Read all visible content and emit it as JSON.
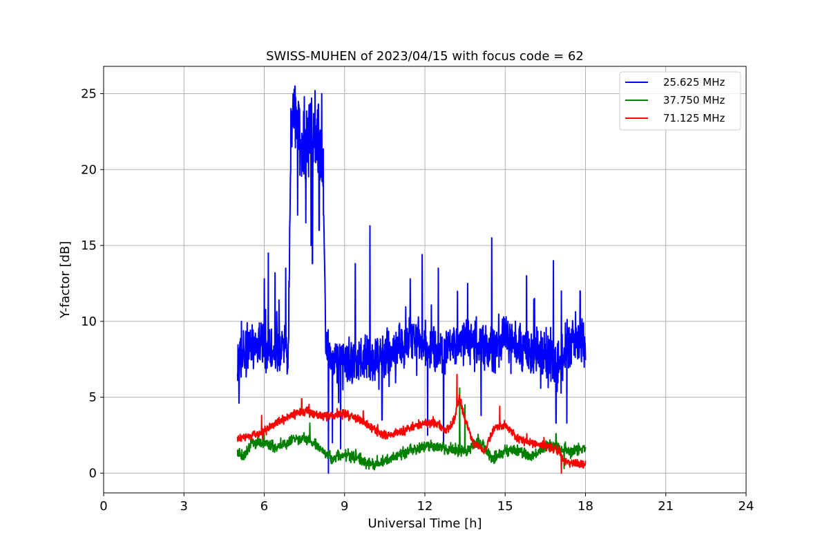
{
  "chart_data": {
    "type": "line",
    "title": "SWISS-MUHEN of 2023/04/15 with focus code = 62",
    "xlabel": "Universal Time [h]",
    "ylabel": "Y-factor [dB]",
    "xlim": [
      0,
      24
    ],
    "ylim": [
      -1.3,
      26.8
    ],
    "xticks": [
      0,
      3,
      6,
      9,
      12,
      15,
      18,
      21,
      24
    ],
    "xtick_labels": [
      "0",
      "3",
      "6",
      "9",
      "12",
      "15",
      "18",
      "21",
      "24"
    ],
    "yticks": [
      0,
      5,
      10,
      15,
      20,
      25
    ],
    "ytick_labels": [
      "0",
      "5",
      "10",
      "15",
      "20",
      "25"
    ],
    "grid": true,
    "legend_position": "top-right",
    "series": [
      {
        "name": "25.625 MHz",
        "color": "#0000ff",
        "anchors": [
          [
            5.0,
            8.0
          ],
          [
            5.2,
            7.5
          ],
          [
            5.5,
            8.2
          ],
          [
            6.0,
            8.0
          ],
          [
            6.5,
            8.2
          ],
          [
            6.9,
            8.0
          ],
          [
            7.0,
            22.5
          ],
          [
            7.2,
            23.5
          ],
          [
            7.5,
            21.0
          ],
          [
            7.8,
            22.5
          ],
          [
            8.0,
            21.5
          ],
          [
            8.2,
            20.0
          ],
          [
            8.3,
            8.5
          ],
          [
            8.6,
            7.0
          ],
          [
            9.0,
            7.5
          ],
          [
            9.5,
            7.5
          ],
          [
            10.0,
            7.5
          ],
          [
            10.5,
            7.8
          ],
          [
            11.0,
            8.2
          ],
          [
            11.5,
            8.8
          ],
          [
            12.0,
            8.5
          ],
          [
            12.5,
            8.0
          ],
          [
            13.0,
            8.5
          ],
          [
            13.5,
            8.8
          ],
          [
            14.0,
            8.5
          ],
          [
            14.5,
            8.3
          ],
          [
            15.0,
            8.8
          ],
          [
            15.5,
            8.5
          ],
          [
            16.0,
            8.0
          ],
          [
            16.5,
            7.5
          ],
          [
            17.0,
            7.0
          ],
          [
            17.4,
            8.5
          ],
          [
            17.7,
            9.0
          ],
          [
            18.0,
            8.5
          ]
        ],
        "noise": 1.6,
        "spikes": [
          [
            5.15,
            10.0
          ],
          [
            6.0,
            12.8
          ],
          [
            6.15,
            14.5
          ],
          [
            6.4,
            13.2
          ],
          [
            6.55,
            11.4
          ],
          [
            6.8,
            13.5
          ],
          [
            7.08,
            25.0
          ],
          [
            7.15,
            25.5
          ],
          [
            7.5,
            24.8
          ],
          [
            7.9,
            25.2
          ],
          [
            8.15,
            25.0
          ],
          [
            7.25,
            17.0
          ],
          [
            7.55,
            16.5
          ],
          [
            7.75,
            15.0
          ],
          [
            7.8,
            13.8
          ],
          [
            8.05,
            16.0
          ],
          [
            8.4,
            0.0
          ],
          [
            8.55,
            2.0
          ],
          [
            8.85,
            1.6
          ],
          [
            9.4,
            13.8
          ],
          [
            9.95,
            16.3
          ],
          [
            10.4,
            3.5
          ],
          [
            11.45,
            12.8
          ],
          [
            11.9,
            14.4
          ],
          [
            12.1,
            2.5
          ],
          [
            12.5,
            13.5
          ],
          [
            12.7,
            1.8
          ],
          [
            13.6,
            12.5
          ],
          [
            14.5,
            15.5
          ],
          [
            14.1,
            3.8
          ],
          [
            15.8,
            13.0
          ],
          [
            16.1,
            11.5
          ],
          [
            16.8,
            14.0
          ],
          [
            16.9,
            3.3
          ],
          [
            17.1,
            12.0
          ],
          [
            17.3,
            3.3
          ],
          [
            17.8,
            12.0
          ]
        ]
      },
      {
        "name": "37.750 MHz",
        "color": "#008000",
        "anchors": [
          [
            5.0,
            1.3
          ],
          [
            5.2,
            1.0
          ],
          [
            5.5,
            2.0
          ],
          [
            6.0,
            2.0
          ],
          [
            6.5,
            1.7
          ],
          [
            7.0,
            2.2
          ],
          [
            7.5,
            2.3
          ],
          [
            8.0,
            1.8
          ],
          [
            8.5,
            1.0
          ],
          [
            9.0,
            1.2
          ],
          [
            9.5,
            1.0
          ],
          [
            10.0,
            0.5
          ],
          [
            10.5,
            0.8
          ],
          [
            11.0,
            1.2
          ],
          [
            11.5,
            1.5
          ],
          [
            12.0,
            1.8
          ],
          [
            12.5,
            1.7
          ],
          [
            13.0,
            1.5
          ],
          [
            13.5,
            1.4
          ],
          [
            14.0,
            2.2
          ],
          [
            14.5,
            0.9
          ],
          [
            15.0,
            1.5
          ],
          [
            15.5,
            1.5
          ],
          [
            16.0,
            1.0
          ],
          [
            16.5,
            1.8
          ],
          [
            17.0,
            1.7
          ],
          [
            17.5,
            1.4
          ],
          [
            18.0,
            1.7
          ]
        ],
        "noise": 0.35,
        "spikes": [
          [
            13.3,
            5.6
          ],
          [
            13.5,
            4.5
          ],
          [
            16.9,
            2.6
          ],
          [
            7.7,
            3.3
          ],
          [
            17.2,
            0.3
          ]
        ]
      },
      {
        "name": "71.125 MHz",
        "color": "#ff0000",
        "anchors": [
          [
            5.0,
            2.3
          ],
          [
            5.5,
            2.4
          ],
          [
            6.0,
            2.8
          ],
          [
            6.5,
            3.3
          ],
          [
            7.0,
            3.8
          ],
          [
            7.5,
            4.1
          ],
          [
            8.0,
            3.8
          ],
          [
            8.5,
            3.8
          ],
          [
            9.0,
            3.9
          ],
          [
            9.5,
            3.6
          ],
          [
            10.0,
            3.0
          ],
          [
            10.5,
            2.5
          ],
          [
            11.0,
            2.7
          ],
          [
            11.5,
            3.0
          ],
          [
            12.0,
            3.3
          ],
          [
            12.5,
            3.2
          ],
          [
            12.8,
            2.8
          ],
          [
            13.1,
            3.5
          ],
          [
            13.3,
            5.0
          ],
          [
            13.5,
            3.5
          ],
          [
            13.8,
            2.0
          ],
          [
            14.2,
            1.4
          ],
          [
            14.6,
            3.0
          ],
          [
            15.0,
            3.2
          ],
          [
            15.5,
            2.2
          ],
          [
            16.0,
            2.0
          ],
          [
            16.5,
            1.8
          ],
          [
            17.0,
            1.5
          ],
          [
            17.2,
            0.8
          ],
          [
            17.5,
            0.7
          ],
          [
            18.0,
            0.5
          ]
        ],
        "noise": 0.28,
        "spikes": [
          [
            5.9,
            3.8
          ],
          [
            7.4,
            4.9
          ],
          [
            9.7,
            4.1
          ],
          [
            13.2,
            6.5
          ],
          [
            14.8,
            4.4
          ],
          [
            17.1,
            0.0
          ]
        ]
      }
    ]
  }
}
